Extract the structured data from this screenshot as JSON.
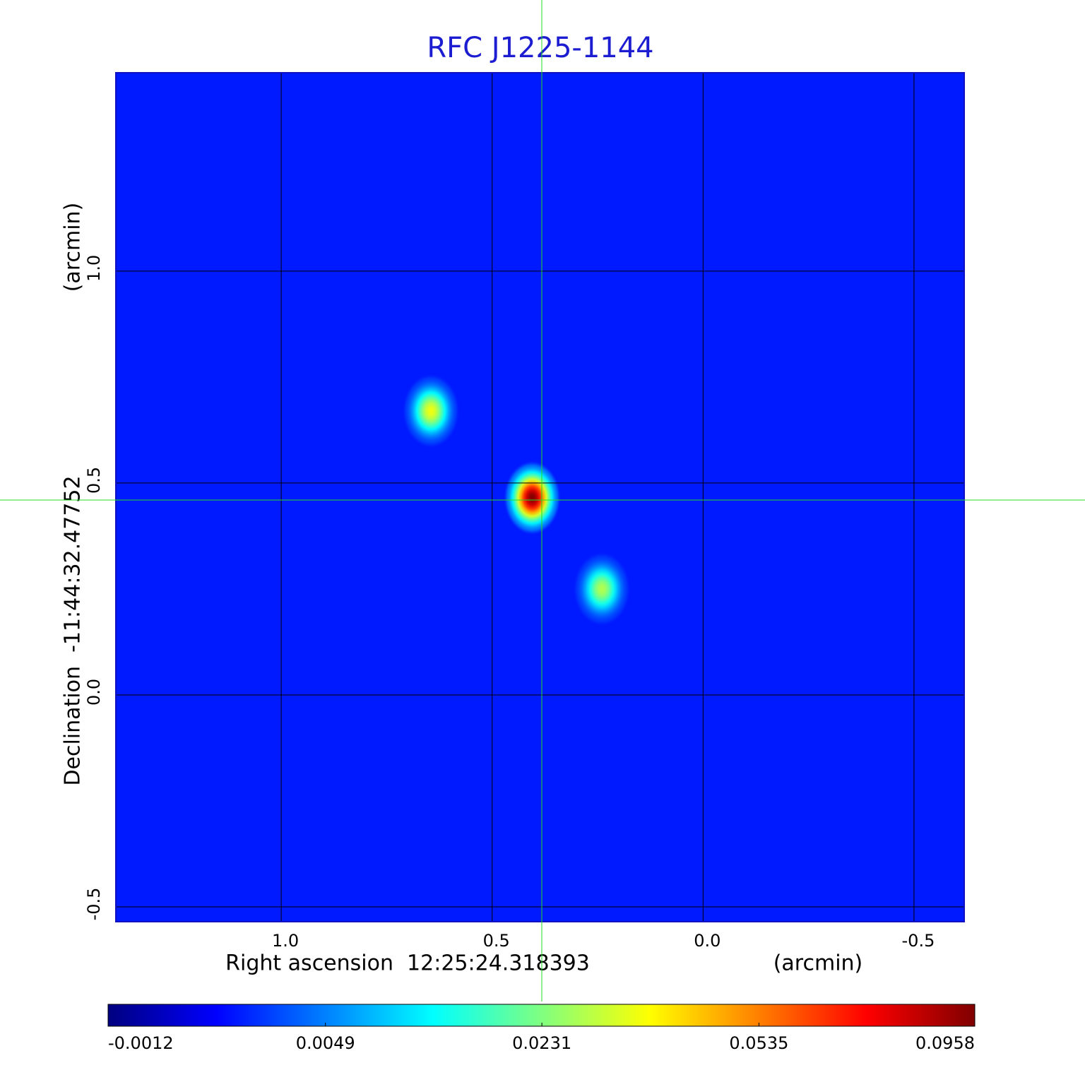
{
  "chart_data": {
    "type": "image",
    "title": "RFC J1225-1144",
    "x_label": "Right ascension  12:25:24.318393",
    "x_unit": "(arcmin)",
    "y_label": "Declination  -11:44:32.47752",
    "y_unit": "(arcmin)",
    "xlim": [
      1.392,
      -0.619
    ],
    "ylim": [
      -0.535,
      1.468
    ],
    "xticks": [
      {
        "value": 1,
        "label": "1.0"
      },
      0.5,
      {
        "value": 0,
        "label": "0.0"
      },
      -0.5
    ],
    "yticks": [
      -0.5,
      {
        "value": 0,
        "label": "0.0"
      },
      0.5,
      {
        "value": 1,
        "label": "1.0"
      }
    ],
    "grid": true,
    "colormap": "jet",
    "color_scale": "sqrt",
    "clim": [
      -0.0012,
      0.0958
    ],
    "colorbar_ticks": [
      -0.0012,
      0.0049,
      0.0231,
      0.0535,
      0.0958
    ],
    "background_level": 0.001,
    "sources": [
      {
        "x": 0.645,
        "y": 0.67,
        "peak": 0.035
      },
      {
        "x": 0.405,
        "y": 0.465,
        "peak": 0.0958
      },
      {
        "x": 0.24,
        "y": 0.25,
        "peak": 0.028
      }
    ]
  }
}
